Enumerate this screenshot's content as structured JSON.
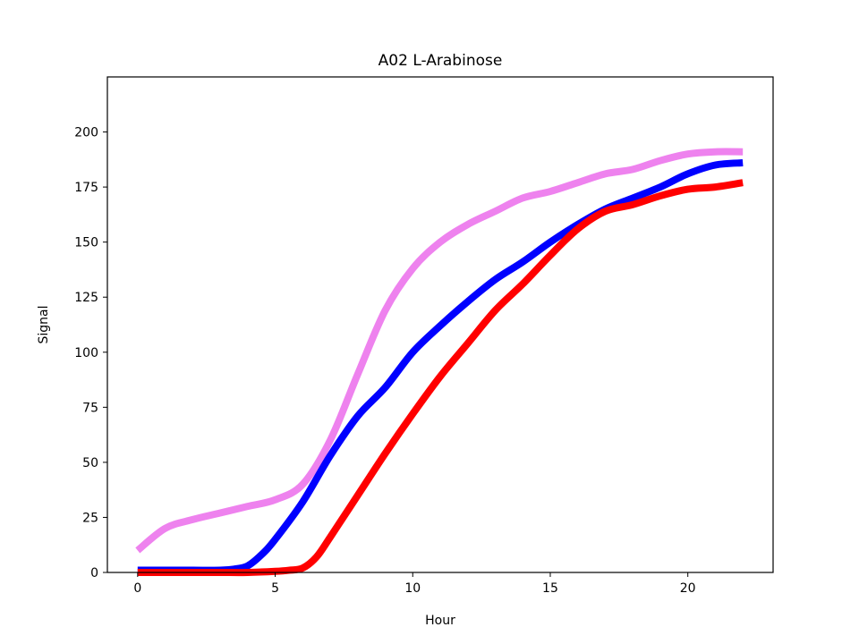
{
  "chart_data": {
    "type": "line",
    "title": "A02 L-Arabinose",
    "xlabel": "Hour",
    "ylabel": "Signal",
    "xlim": [
      -1.1,
      23.1
    ],
    "ylim": [
      0,
      225
    ],
    "xticks": [
      "0",
      "5",
      "10",
      "15",
      "20"
    ],
    "yticks": [
      "0",
      "25",
      "50",
      "75",
      "100",
      "125",
      "150",
      "175",
      "200"
    ],
    "grid": false,
    "legend": "none",
    "series": [
      {
        "color": "#ee82ee",
        "x": [
          0,
          1,
          2,
          3,
          4,
          5,
          6,
          7,
          8,
          9,
          10,
          11,
          12,
          13,
          14,
          15,
          16,
          17,
          18,
          19,
          20,
          21,
          22
        ],
        "y": [
          10,
          20,
          24,
          27,
          30,
          33,
          40,
          60,
          90,
          119,
          138,
          150,
          158,
          164,
          170,
          173,
          177,
          181,
          183,
          187,
          190,
          191,
          191
        ]
      },
      {
        "color": "#0000ff",
        "x": [
          0,
          1,
          2,
          3,
          3.5,
          4,
          4.5,
          5,
          6,
          7,
          8,
          9,
          10,
          11,
          12,
          13,
          14,
          15,
          16,
          17,
          18,
          19,
          20,
          21,
          22
        ],
        "y": [
          1,
          1,
          1,
          1,
          1.5,
          3,
          8,
          15,
          32,
          53,
          71,
          84,
          100,
          112,
          123,
          133,
          141,
          150,
          158,
          165,
          170,
          175,
          181,
          185,
          186
        ]
      },
      {
        "color": "#ff0000",
        "x": [
          0,
          1,
          2,
          3,
          4,
          5,
          5.5,
          6,
          6.5,
          7,
          8,
          9,
          10,
          11,
          12,
          13,
          14,
          15,
          16,
          17,
          18,
          19,
          20,
          21,
          22
        ],
        "y": [
          0,
          0,
          0,
          0,
          0,
          0.5,
          1,
          2,
          7,
          16,
          35,
          54,
          72,
          89,
          104,
          119,
          131,
          144,
          156,
          164,
          167,
          171,
          174,
          175,
          177
        ]
      }
    ]
  }
}
